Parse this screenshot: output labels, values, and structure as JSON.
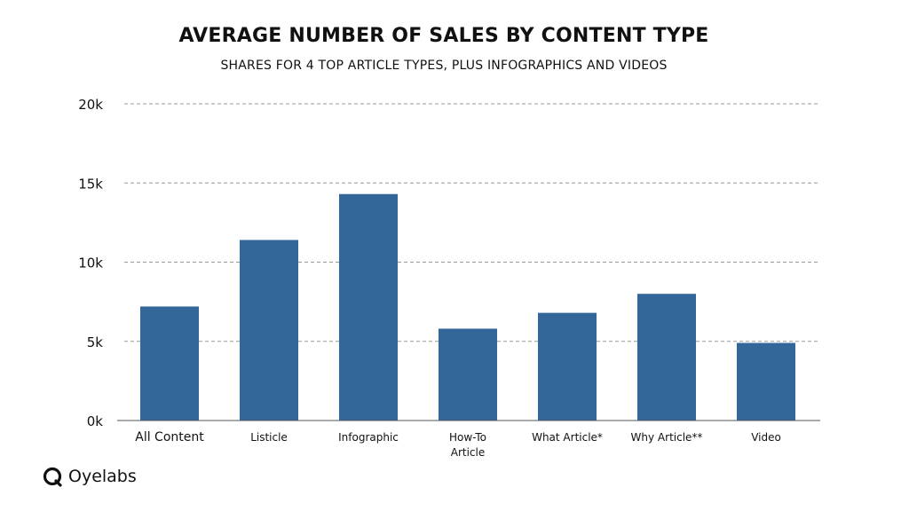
{
  "chart_data": {
    "type": "bar",
    "title": "AVERAGE NUMBER OF SALES BY CONTENT TYPE",
    "subtitle": "SHARES FOR 4 TOP ARTICLE TYPES, PLUS INFOGRAPHICS AND VIDEOS",
    "categories": [
      "All Content",
      "Listicle",
      "Infographic",
      "How-To Article",
      "What Article*",
      "Why Article**",
      "Video"
    ],
    "category_lines": [
      [
        "All Content"
      ],
      [
        "Listicle"
      ],
      [
        "Infographic"
      ],
      [
        "How-To",
        "Article"
      ],
      [
        "What Article*"
      ],
      [
        "Why Article**"
      ],
      [
        "Video"
      ]
    ],
    "values": [
      7200,
      11400,
      14300,
      5800,
      6800,
      8000,
      4900
    ],
    "ylim": [
      0,
      20000
    ],
    "yticks": [
      0,
      5000,
      10000,
      15000,
      20000
    ],
    "ytick_labels": [
      "0k",
      "5k",
      "10k",
      "15k",
      "20k"
    ],
    "grid": "dashed horizontal",
    "bar_color": "#336699"
  },
  "brand": {
    "name": "Oyelabs",
    "icon": "oyelabs-logo-icon"
  }
}
